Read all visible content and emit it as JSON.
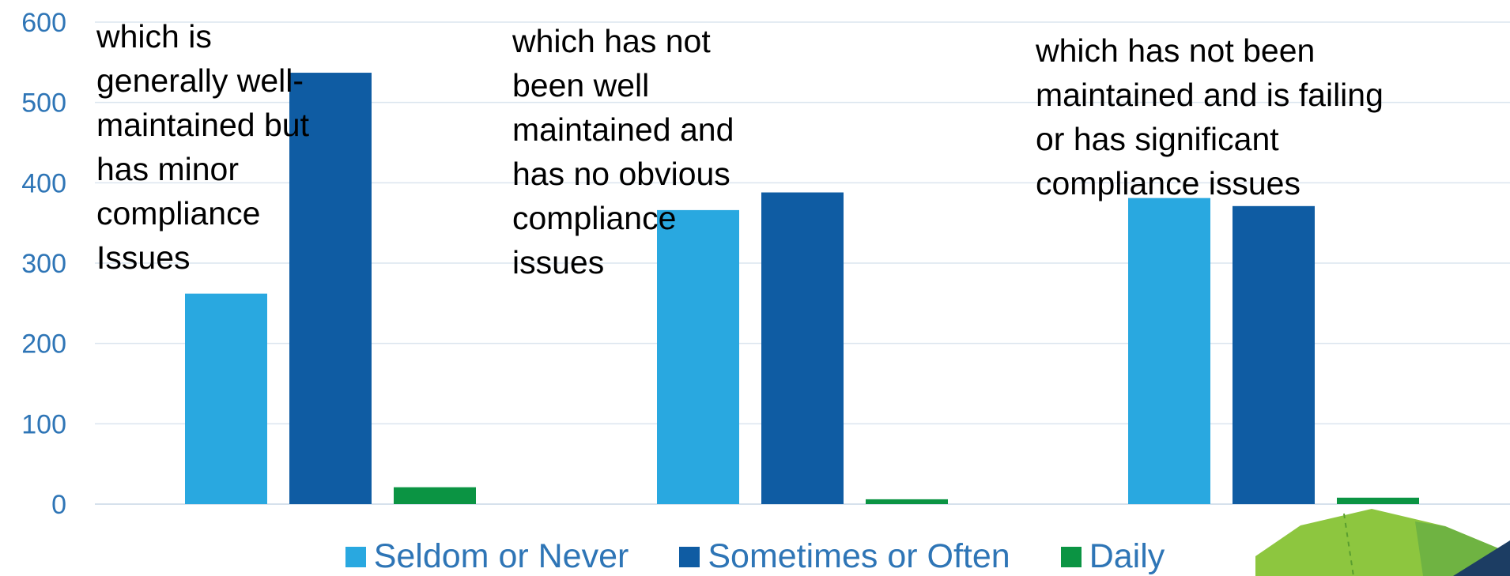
{
  "chart_data": {
    "type": "bar",
    "categories": [
      "which is\ngenerally well-\nmaintained but\nhas minor\ncompliance\nIssues",
      "which has not\nbeen well\nmaintained and\nhas no obvious\ncompliance\nissues",
      "which has not been\nmaintained and is failing\nor has significant\ncompliance issues"
    ],
    "series": [
      {
        "name": "Seldom or Never",
        "values": [
          262,
          366,
          381
        ],
        "color": "#29a8e0"
      },
      {
        "name": "Sometimes or Often",
        "values": [
          537,
          388,
          371
        ],
        "color": "#0f5ca3"
      },
      {
        "name": "Daily",
        "values": [
          21,
          6,
          8
        ],
        "color": "#0b9443"
      }
    ],
    "yticks": [
      0,
      100,
      200,
      300,
      400,
      500,
      600
    ],
    "ylim": [
      0,
      600
    ],
    "grid": true,
    "legend_position": "bottom"
  },
  "decoration": {
    "primary_color": "#8dc63f",
    "secondary_color": "#6fb342",
    "dark_color": "#1c3d63"
  }
}
